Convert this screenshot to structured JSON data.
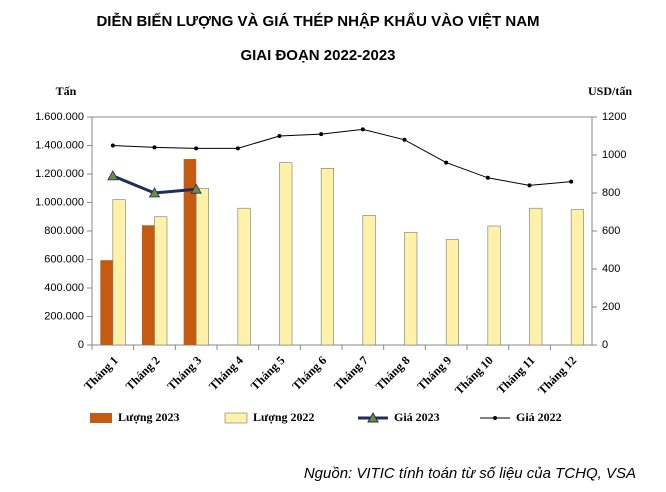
{
  "chart_data": {
    "type": "bar",
    "title": "DIỄN BIẾN LƯỢNG VÀ GIÁ THÉP NHẬP KHẨU VÀO VIỆT NAM",
    "subtitle": "GIAI ĐOẠN 2022-2023",
    "y_label": "Tấn",
    "y2_label": "USD/tấn",
    "source": "Nguồn: VITIC tính toán từ số liệu của TCHQ, VSA",
    "categories": [
      "Tháng 1",
      "Tháng 2",
      "Tháng 3",
      "Tháng 4",
      "Tháng 5",
      "Tháng 6",
      "Tháng 7",
      "Tháng 8",
      "Tháng 9",
      "Tháng 10",
      "Tháng 11",
      "Tháng 12"
    ],
    "series": [
      {
        "name": "Lượng 2023",
        "type": "bar",
        "color": "#c55a11",
        "values": [
          595000,
          840000,
          1305000,
          null,
          null,
          null,
          null,
          null,
          null,
          null,
          null,
          null
        ]
      },
      {
        "name": "Lượng 2022",
        "type": "bar",
        "color": "#fff2a8",
        "values": [
          1020000,
          900000,
          1100000,
          960000,
          1280000,
          1240000,
          910000,
          790000,
          740000,
          835000,
          960000,
          950000
        ]
      },
      {
        "name": "Giá 2023",
        "type": "line",
        "axis": "y2",
        "color": "#1f2d5c",
        "marker": "triangle",
        "marker_color": "#6b8e3a",
        "values": [
          890,
          800,
          820,
          null,
          null,
          null,
          null,
          null,
          null,
          null,
          null,
          null
        ]
      },
      {
        "name": "Giá 2022",
        "type": "line",
        "axis": "y2",
        "color": "#000000",
        "marker": "dot",
        "values": [
          1050,
          1040,
          1035,
          1035,
          1100,
          1110,
          1135,
          1080,
          960,
          880,
          840,
          860
        ]
      }
    ],
    "ylim": [
      0,
      1600000
    ],
    "yticks": [
      0,
      {
        "value": 200000,
        "label": "200.000"
      },
      {
        "value": 400000,
        "label": "400.000"
      },
      {
        "value": 600000,
        "label": "600.000"
      },
      {
        "value": 800000,
        "label": "800.000"
      },
      {
        "value": 1000000,
        "label": "1.000.000"
      },
      {
        "value": 1200000,
        "label": "1.200.000"
      },
      {
        "value": 1400000,
        "label": "1.400.000"
      },
      {
        "value": 1600000,
        "label": "1.600.000"
      }
    ],
    "y2lim": [
      0,
      1200
    ],
    "y2ticks": [
      0,
      200,
      400,
      600,
      800,
      1000,
      1200
    ],
    "grid": false,
    "legend": "bottom"
  }
}
